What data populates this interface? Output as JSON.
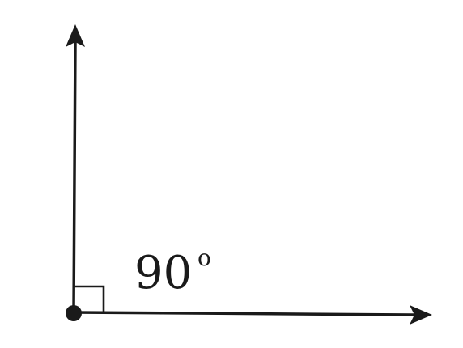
{
  "diagram": {
    "angle_value": "90",
    "angle_unit": "o"
  },
  "colors": {
    "stroke": "#1a1a1a",
    "background": "#ffffff"
  }
}
